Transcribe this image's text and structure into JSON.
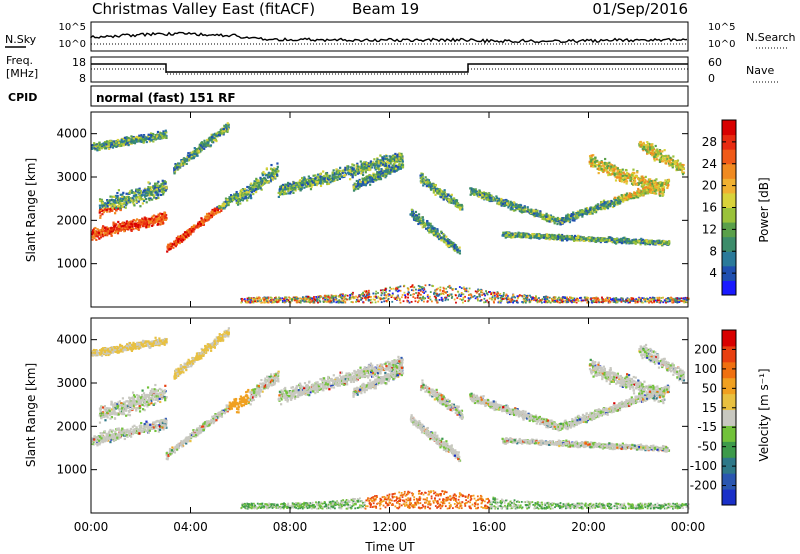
{
  "header": {
    "station": "Christmas Valley East (fitACF)",
    "beam": "Beam 19",
    "date": "01/Sep/2016"
  },
  "noise_panel": {
    "left_label": "N.Sky",
    "right_label": "N.Search",
    "left_ticks": [
      "10^5",
      "10^0"
    ],
    "right_ticks": [
      "10^5",
      "10^0"
    ]
  },
  "freq_panel": {
    "left_label_1": "Freq.",
    "left_label_2": "[MHz]",
    "right_label": "Nave",
    "left_ticks": [
      "18",
      "8"
    ],
    "right_ticks": [
      "60",
      "0"
    ]
  },
  "cpid": {
    "label": "CPID",
    "value": "normal (fast) 151 RF"
  },
  "chart_data": [
    {
      "type": "heatmap",
      "name": "power",
      "ylabel": "Slant Range [km]",
      "xlabel": "",
      "ylim": [
        0,
        4500
      ],
      "yticks": [
        "1000",
        "2000",
        "3000",
        "4000"
      ],
      "xticks": [
        "00:00",
        "04:00",
        "08:00",
        "12:00",
        "16:00",
        "20:00",
        "00:00"
      ],
      "colorbar_label": "Power [dB]",
      "colorbar_ticks": [
        "4",
        "8",
        "12",
        "16",
        "20",
        "24",
        "28"
      ],
      "colorbar_colors": [
        "#1a1aff",
        "#1f4fb0",
        "#2a7a9a",
        "#3c8c6a",
        "#5aa04a",
        "#9ac23a",
        "#d8d23a",
        "#f0b030",
        "#f08a20",
        "#f05a18",
        "#e82a10",
        "#d80000"
      ]
    },
    {
      "type": "heatmap",
      "name": "velocity",
      "ylabel": "Slant Range [km]",
      "xlabel": "Time UT",
      "ylim": [
        0,
        4500
      ],
      "yticks": [
        "1000",
        "2000",
        "3000",
        "4000"
      ],
      "xticks": [
        "00:00",
        "04:00",
        "08:00",
        "12:00",
        "16:00",
        "20:00",
        "00:00"
      ],
      "colorbar_label": "Velocity [m s⁻¹]",
      "colorbar_ticks": [
        "200",
        "100",
        "50",
        "15",
        "-15",
        "-50",
        "-100",
        "-200"
      ],
      "colorbar_colors": [
        "#1a30c8",
        "#2a56b0",
        "#2e7888",
        "#3d9a4a",
        "#72c23a",
        "#c8c8c0",
        "#e8c040",
        "#f0a020",
        "#f07010",
        "#e84010",
        "#d80000"
      ]
    }
  ]
}
